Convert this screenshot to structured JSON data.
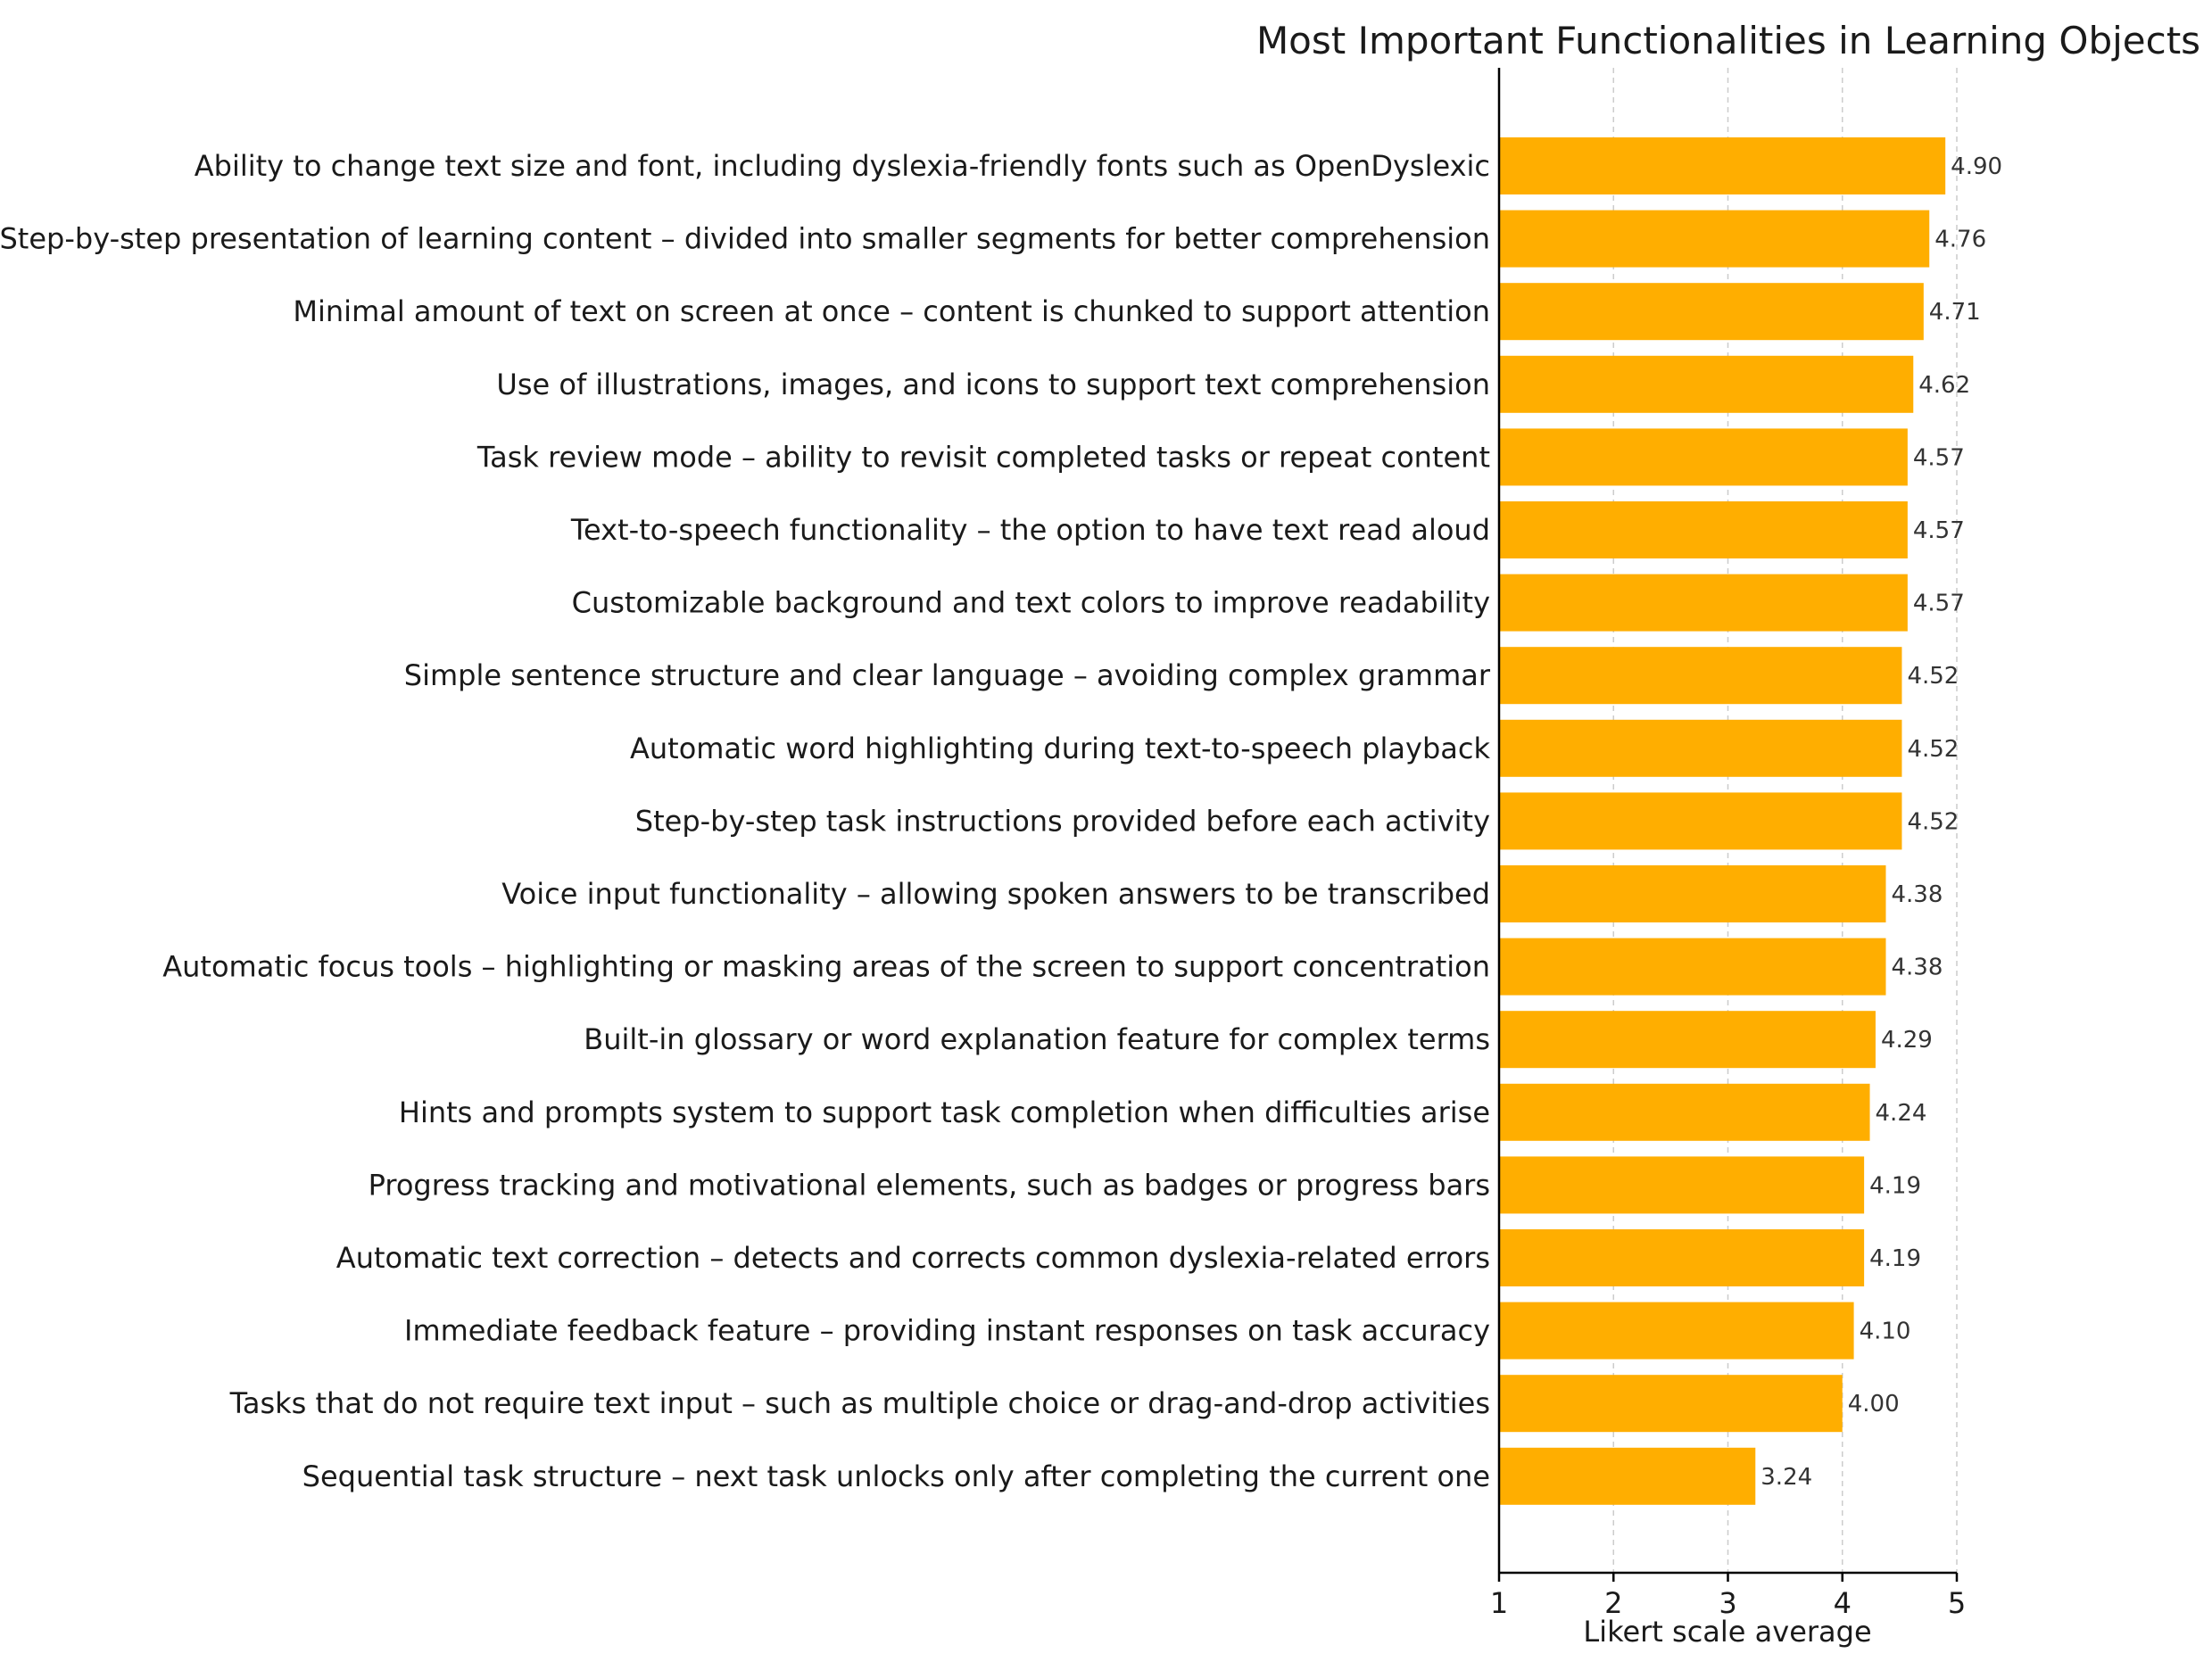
{
  "chart_data": {
    "type": "bar",
    "orientation": "horizontal",
    "title": "Most Important Functionalities in Learning Objects",
    "xlabel": "Likert scale average",
    "ylabel": "",
    "xlim": [
      1,
      5
    ],
    "xticks": [
      1,
      2,
      3,
      4,
      5
    ],
    "grid": "x",
    "bar_color": "#FFAE00",
    "categories": [
      "Ability to change text size and font, including dyslexia-friendly fonts such as OpenDyslexic",
      "Step-by-step presentation of learning content – divided into smaller segments for better comprehension",
      "Minimal amount of text on screen at once – content is chunked to support attention",
      "Use of illustrations, images, and icons to support text comprehension",
      "Task review mode – ability to revisit completed tasks or repeat content",
      "Text-to-speech functionality – the option to have text read aloud",
      "Customizable background and text colors to improve readability",
      "Simple sentence structure and clear language – avoiding complex grammar",
      "Automatic word highlighting during text-to-speech playback",
      "Step-by-step task instructions provided before each activity",
      "Voice input functionality – allowing spoken answers to be transcribed",
      "Automatic focus tools – highlighting or masking areas of the screen to support concentration",
      "Built-in glossary or word explanation feature for complex terms",
      "Hints and prompts system to support task completion when difficulties arise",
      "Progress tracking and motivational elements, such as badges or progress bars",
      "Automatic text correction – detects and corrects common dyslexia-related errors",
      "Immediate feedback feature – providing instant responses on task accuracy",
      "Tasks that do not require text input – such as multiple choice or drag-and-drop activities",
      "Sequential task structure – next task unlocks only after completing the current one"
    ],
    "values": [
      4.9,
      4.76,
      4.71,
      4.62,
      4.57,
      4.57,
      4.57,
      4.52,
      4.52,
      4.52,
      4.38,
      4.38,
      4.29,
      4.24,
      4.19,
      4.19,
      4.1,
      4.0,
      3.24
    ],
    "value_labels": [
      "4.90",
      "4.76",
      "4.71",
      "4.62",
      "4.57",
      "4.57",
      "4.57",
      "4.52",
      "4.52",
      "4.52",
      "4.38",
      "4.38",
      "4.29",
      "4.24",
      "4.19",
      "4.19",
      "4.10",
      "4.00",
      "3.24"
    ]
  }
}
